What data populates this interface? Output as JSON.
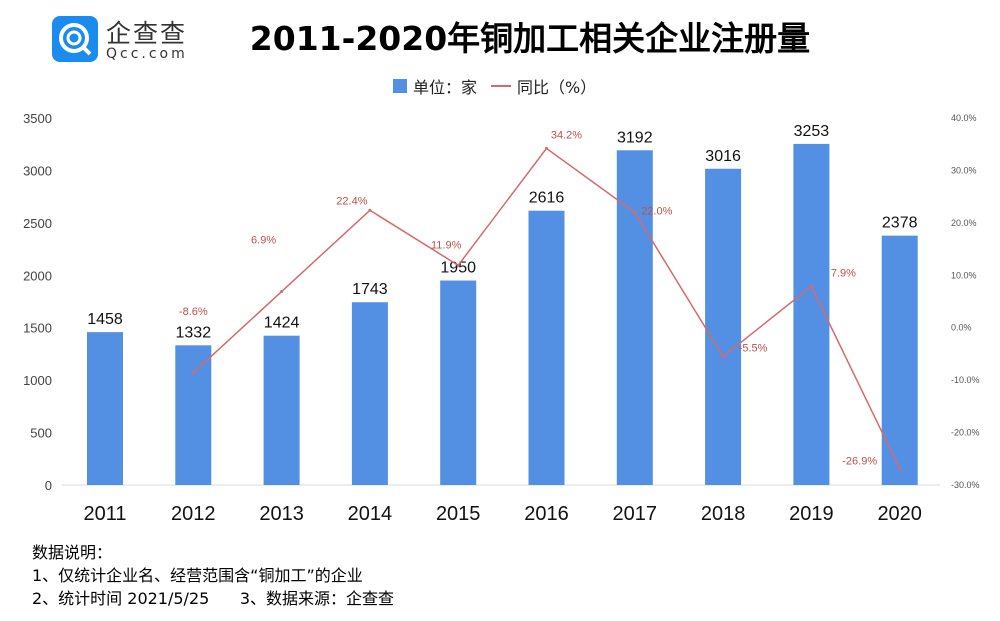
{
  "brand": {
    "name": "企查查",
    "domain": "Qcc.com"
  },
  "chart_data": {
    "type": "bar+line",
    "title": "2011-2020年铜加工相关企业注册量",
    "categories": [
      "2011",
      "2012",
      "2013",
      "2014",
      "2015",
      "2016",
      "2017",
      "2018",
      "2019",
      "2020"
    ],
    "series": [
      {
        "name": "单位：家",
        "type": "bar",
        "axis": "left",
        "color": "#5390e3",
        "values": [
          1458,
          1332,
          1424,
          1743,
          1950,
          2616,
          3192,
          3016,
          3253,
          2378
        ]
      },
      {
        "name": "同比（%）",
        "type": "line",
        "axis": "right",
        "color": "#d46a6a",
        "values": [
          null,
          -8.6,
          6.9,
          22.4,
          11.9,
          34.2,
          22.0,
          -5.5,
          7.9,
          -26.9
        ],
        "labels": [
          "",
          "-8.6%",
          "6.9%",
          "22.4%",
          "11.9%",
          "34.2%",
          "22.0%",
          "-5.5%",
          "7.9%",
          "-26.9%"
        ]
      }
    ],
    "left_axis": {
      "range": [
        0,
        3500
      ],
      "ticks": [
        "0",
        "500",
        "1000",
        "1500",
        "2000",
        "2500",
        "3000",
        "3500"
      ]
    },
    "right_axis": {
      "range": [
        -30,
        40
      ],
      "ticks": [
        "-30.0%",
        "-20.0%",
        "-10.0%",
        "0.0%",
        "10.0%",
        "20.0%",
        "30.0%",
        "40.0%"
      ]
    },
    "grid": false,
    "legend": "top-center"
  },
  "legend": {
    "bar": "单位：家",
    "line": "同比（%）"
  },
  "notes": [
    "数据说明：",
    "1、仅统计企业名、经营范围含“铜加工”的企业",
    "2、统计时间 2021/5/25      3、数据来源：企查查"
  ]
}
